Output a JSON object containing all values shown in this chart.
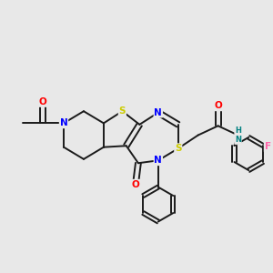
{
  "bg_color": "#e8e8e8",
  "bond_color": "#1a1a1a",
  "bond_width": 1.4,
  "atom_colors": {
    "N": "#0000FF",
    "O": "#FF0000",
    "S": "#CCCC00",
    "F": "#FF66AA",
    "H": "#008080",
    "C": "#1a1a1a"
  },
  "figsize": [
    3.0,
    3.0
  ],
  "dpi": 100
}
